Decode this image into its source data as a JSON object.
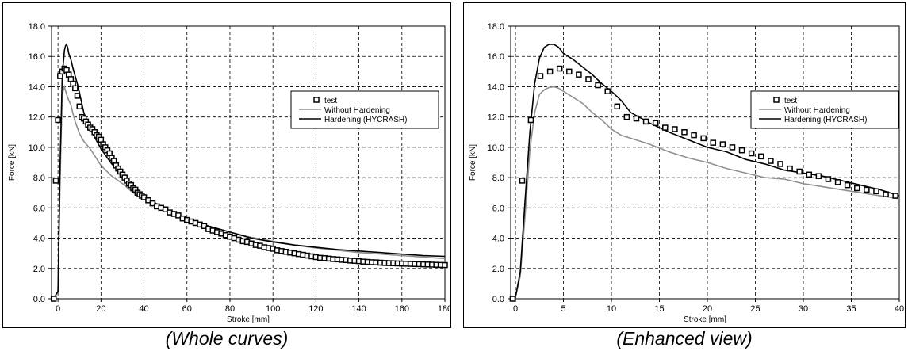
{
  "colors": {
    "test": "#000000",
    "without": "#909090",
    "hardening": "#000000",
    "grid": "#000000"
  },
  "captions": {
    "left": "(Whole curves)",
    "right": "(Enhanced view)"
  },
  "chart_data": [
    {
      "type": "line",
      "xlabel": "Stroke [mm]",
      "ylabel": "Force [kN]",
      "xlim": [
        -3,
        180
      ],
      "ylim": [
        0,
        18
      ],
      "xticks": [
        0,
        20,
        40,
        60,
        80,
        100,
        120,
        140,
        160,
        180
      ],
      "xtick_labels": [
        "0",
        "20",
        "40",
        "60",
        "80",
        "100",
        "120",
        "140",
        "160",
        "180"
      ],
      "yticks": [
        0,
        2,
        4,
        6,
        8,
        10,
        12,
        14,
        16,
        18
      ],
      "ytick_labels": [
        "0.0",
        "2.0",
        "4.0",
        "6.0",
        "8.0",
        "10.0",
        "12.0",
        "14.0",
        "16.0",
        "18.0"
      ],
      "grid": true,
      "legend": "center-right",
      "series": [
        {
          "name": "test",
          "style": "markers",
          "x": [
            -2,
            -1,
            0,
            1,
            2,
            3,
            4,
            5,
            6,
            7,
            8,
            9,
            10,
            11,
            12,
            13,
            14,
            15,
            16,
            17,
            18,
            19,
            20,
            21,
            22,
            23,
            24,
            25,
            26,
            27,
            28,
            29,
            30,
            31,
            32,
            33,
            34,
            35,
            36,
            37,
            38,
            39,
            40,
            42,
            44,
            46,
            48,
            50,
            52,
            54,
            56,
            58,
            60,
            62,
            64,
            66,
            68,
            70,
            72,
            74,
            76,
            78,
            80,
            82,
            84,
            86,
            88,
            90,
            92,
            94,
            96,
            98,
            100,
            102,
            104,
            106,
            108,
            110,
            112,
            114,
            116,
            118,
            120,
            122,
            124,
            126,
            128,
            130,
            132,
            134,
            136,
            138,
            140,
            142,
            144,
            146,
            148,
            150,
            152,
            154,
            156,
            158,
            160,
            162,
            164,
            166,
            168,
            170,
            172,
            174,
            176,
            178,
            180
          ],
          "y": [
            0.0,
            7.8,
            11.8,
            14.7,
            15.0,
            15.2,
            15.1,
            14.8,
            14.5,
            14.2,
            13.9,
            13.4,
            12.7,
            12.0,
            11.9,
            11.7,
            11.5,
            11.3,
            11.2,
            11.0,
            10.8,
            10.7,
            10.5,
            10.2,
            10.0,
            9.8,
            9.6,
            9.3,
            9.1,
            8.8,
            8.6,
            8.4,
            8.2,
            8.0,
            7.8,
            7.6,
            7.5,
            7.3,
            7.2,
            7.0,
            6.9,
            6.8,
            6.7,
            6.5,
            6.3,
            6.1,
            6.0,
            5.9,
            5.7,
            5.6,
            5.5,
            5.3,
            5.2,
            5.1,
            5.0,
            4.9,
            4.8,
            4.6,
            4.5,
            4.4,
            4.3,
            4.2,
            4.1,
            4.0,
            3.9,
            3.8,
            3.75,
            3.65,
            3.55,
            3.5,
            3.4,
            3.35,
            3.3,
            3.2,
            3.15,
            3.1,
            3.05,
            3.0,
            2.95,
            2.9,
            2.85,
            2.8,
            2.75,
            2.7,
            2.68,
            2.65,
            2.62,
            2.6,
            2.57,
            2.55,
            2.52,
            2.5,
            2.48,
            2.45,
            2.43,
            2.41,
            2.4,
            2.38,
            2.36,
            2.35,
            2.34,
            2.33,
            2.32,
            2.31,
            2.3,
            2.29,
            2.28,
            2.27,
            2.26,
            2.25,
            2.24,
            2.23,
            2.22
          ]
        },
        {
          "name": "Without Hardening",
          "style": "line",
          "x": [
            -2,
            0,
            1,
            2,
            3,
            4,
            5,
            6,
            7,
            8,
            9,
            10,
            12,
            15,
            20,
            25,
            30,
            35,
            40,
            50,
            60,
            70,
            80,
            90,
            100,
            110,
            120,
            130,
            140,
            150,
            160,
            170,
            180
          ],
          "y": [
            0,
            0.5,
            8,
            13.5,
            14.0,
            13.5,
            13.1,
            12.8,
            12.2,
            11.7,
            11.3,
            10.9,
            10.4,
            9.9,
            8.8,
            8.1,
            7.6,
            7.0,
            6.6,
            5.9,
            5.3,
            4.8,
            4.4,
            4.05,
            3.8,
            3.55,
            3.35,
            3.2,
            3.05,
            2.95,
            2.85,
            2.75,
            2.65
          ]
        },
        {
          "name": "Hardening (HYCRASH)",
          "style": "line",
          "x": [
            -2,
            0,
            1,
            2,
            3,
            3.5,
            4,
            4.5,
            5,
            6,
            7,
            8,
            9,
            10,
            12,
            15,
            20,
            25,
            30,
            35,
            40,
            50,
            60,
            70,
            80,
            90,
            100,
            110,
            120,
            130,
            140,
            150,
            160,
            170,
            180
          ],
          "y": [
            0,
            0.5,
            9,
            14.8,
            16.4,
            16.7,
            16.8,
            16.6,
            16.2,
            15.8,
            15.2,
            14.7,
            14.2,
            13.6,
            12.3,
            11.2,
            9.9,
            8.9,
            8.2,
            7.5,
            6.8,
            5.9,
            5.3,
            4.8,
            4.4,
            4.0,
            3.75,
            3.55,
            3.4,
            3.25,
            3.15,
            3.05,
            2.95,
            2.85,
            2.8
          ]
        }
      ]
    },
    {
      "type": "line",
      "xlabel": "Stroke [mm]",
      "ylabel": "Force [kN]",
      "xlim": [
        -0.5,
        40
      ],
      "ylim": [
        0,
        18
      ],
      "xticks": [
        0,
        5,
        10,
        15,
        20,
        25,
        30,
        35,
        40
      ],
      "xtick_labels": [
        "0",
        "5",
        "10",
        "15",
        "20",
        "25",
        "30",
        "35",
        "40"
      ],
      "yticks": [
        0,
        2,
        4,
        6,
        8,
        10,
        12,
        14,
        16,
        18
      ],
      "ytick_labels": [
        "0.0",
        "2.0",
        "4.0",
        "6.0",
        "8.0",
        "10.0",
        "12.0",
        "14.0",
        "16.0",
        "18.0"
      ],
      "grid": true,
      "legend": "top-right",
      "series": [
        {
          "name": "test",
          "style": "markers",
          "x": [
            -0.3,
            0.7,
            1.6,
            2.6,
            3.6,
            4.6,
            5.6,
            6.6,
            7.6,
            8.6,
            9.6,
            10.6,
            11.6,
            12.6,
            13.6,
            14.6,
            15.6,
            16.6,
            17.6,
            18.6,
            19.6,
            20.6,
            21.6,
            22.6,
            23.6,
            24.6,
            25.6,
            26.6,
            27.6,
            28.6,
            29.6,
            30.6,
            31.6,
            32.6,
            33.6,
            34.6,
            35.6,
            36.6,
            37.6,
            38.6,
            39.6
          ],
          "y": [
            0.0,
            7.8,
            11.8,
            14.7,
            15.0,
            15.2,
            15.0,
            14.8,
            14.5,
            14.1,
            13.7,
            12.7,
            12.0,
            11.9,
            11.7,
            11.6,
            11.3,
            11.2,
            11.0,
            10.8,
            10.6,
            10.3,
            10.2,
            10.0,
            9.8,
            9.6,
            9.4,
            9.1,
            8.9,
            8.6,
            8.4,
            8.2,
            8.1,
            7.9,
            7.7,
            7.5,
            7.3,
            7.2,
            7.1,
            6.9,
            6.8
          ]
        },
        {
          "name": "Without Hardening",
          "style": "line",
          "x": [
            -0.5,
            0,
            0.5,
            1,
            1.5,
            2,
            2.5,
            3,
            3.5,
            4,
            4.5,
            5,
            6,
            7,
            8,
            9,
            10,
            11,
            12,
            14,
            16,
            18,
            20,
            22,
            24,
            26,
            28,
            30,
            32,
            34,
            36,
            38,
            40
          ],
          "y": [
            0,
            0.1,
            1.5,
            5.5,
            9.8,
            12.3,
            13.5,
            13.8,
            13.95,
            14.0,
            13.9,
            13.7,
            13.3,
            12.9,
            12.3,
            11.8,
            11.2,
            10.8,
            10.6,
            10.2,
            9.7,
            9.3,
            9.0,
            8.6,
            8.3,
            8.0,
            7.9,
            7.6,
            7.4,
            7.2,
            7.0,
            6.8,
            6.6
          ]
        },
        {
          "name": "Hardening (HYCRASH)",
          "style": "line",
          "x": [
            -0.5,
            0,
            0.5,
            1,
            1.5,
            2,
            2.5,
            3,
            3.5,
            4,
            4.5,
            5,
            5.5,
            6,
            7,
            8,
            9,
            10,
            11,
            12,
            14,
            16,
            18,
            20,
            22,
            24,
            26,
            28,
            30,
            32,
            34,
            36,
            38,
            40
          ],
          "y": [
            0,
            0.1,
            1.8,
            6.5,
            11.0,
            14.2,
            15.9,
            16.6,
            16.8,
            16.8,
            16.6,
            16.2,
            16.0,
            15.8,
            15.3,
            14.8,
            14.2,
            13.7,
            13.1,
            12.3,
            11.6,
            11.0,
            10.5,
            10.0,
            9.7,
            9.2,
            8.9,
            8.5,
            8.3,
            8.1,
            7.8,
            7.5,
            7.2,
            6.8
          ]
        }
      ]
    }
  ]
}
